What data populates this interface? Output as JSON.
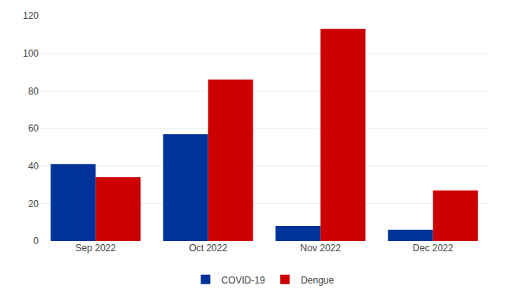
{
  "chart_data": {
    "type": "bar",
    "categories": [
      "Sep 2022",
      "Oct 2022",
      "Nov 2022",
      "Dec 2022"
    ],
    "series": [
      {
        "name": "COVID-19",
        "color": "#003399",
        "values": [
          41,
          57,
          8,
          6
        ]
      },
      {
        "name": "Dengue",
        "color": "#cc0000",
        "values": [
          34,
          86,
          113,
          27
        ]
      }
    ],
    "ylim": [
      0,
      120
    ],
    "yticks": [
      0,
      20,
      40,
      60,
      80,
      100,
      120
    ],
    "grid": true,
    "legend": "bottom"
  }
}
